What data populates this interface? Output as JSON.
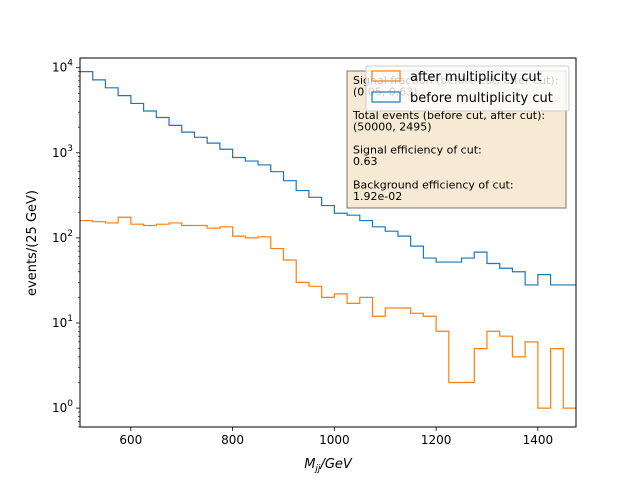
{
  "chart_data": {
    "type": "histogram",
    "xlabel": "M",
    "xlabel_sub": "jj",
    "xlabel_suffix": "/GeV",
    "ylabel": "events/(25 GeV)",
    "xlim": [
      500,
      1475
    ],
    "ylim": [
      0.6,
      13000
    ],
    "yscale": "log",
    "grid": false,
    "legend_position": "upper-right",
    "x_ticks": [
      600,
      800,
      1000,
      1200,
      1400
    ],
    "x_tick_labels": [
      "600",
      "800",
      "1000",
      "1200",
      "1400"
    ],
    "y_ticks": [
      1,
      10,
      100,
      1000,
      10000
    ],
    "y_tick_base": "10",
    "y_tick_exponents": [
      "0",
      "1",
      "2",
      "3",
      "4"
    ],
    "bin_edges": [
      500,
      525,
      550,
      575,
      600,
      625,
      650,
      675,
      700,
      725,
      750,
      775,
      800,
      825,
      850,
      875,
      900,
      925,
      950,
      975,
      1000,
      1025,
      1050,
      1075,
      1100,
      1125,
      1150,
      1175,
      1200,
      1225,
      1250,
      1275,
      1300,
      1325,
      1350,
      1375,
      1400,
      1425,
      1450,
      1475
    ],
    "series": [
      {
        "name": "before multiplicity cut",
        "color": "#1f77b4",
        "values": [
          9000,
          7200,
          5800,
          4700,
          3800,
          3100,
          2600,
          2100,
          1750,
          1520,
          1300,
          1100,
          880,
          800,
          720,
          600,
          470,
          360,
          300,
          240,
          195,
          185,
          160,
          135,
          120,
          105,
          80,
          58,
          52,
          52,
          58,
          68,
          50,
          44,
          40,
          28,
          37,
          28,
          28
        ]
      },
      {
        "name": "after multiplicity cut",
        "color": "#ff7f0e",
        "values": [
          160,
          155,
          150,
          175,
          145,
          140,
          145,
          150,
          140,
          140,
          130,
          135,
          105,
          100,
          103,
          75,
          55,
          30,
          27,
          20,
          22,
          17,
          20,
          12,
          15,
          15,
          13,
          12,
          8,
          2,
          2,
          5,
          8,
          7,
          4,
          6,
          1,
          5,
          1
        ]
      }
    ],
    "legend_order": [
      "after multiplicity cut",
      "before multiplicity cut"
    ],
    "annotation": {
      "box_color": "#f5e6cc",
      "lines": [
        "Signal fraction (before cut, after cut):",
        "(0.05, 0.63)",
        "",
        "Total events (before cut, after cut):",
        "(50000, 2495)",
        "",
        "Signal efficiency of cut:",
        "0.63",
        "",
        "Background efficiency of cut:",
        "1.92e-02"
      ]
    }
  }
}
